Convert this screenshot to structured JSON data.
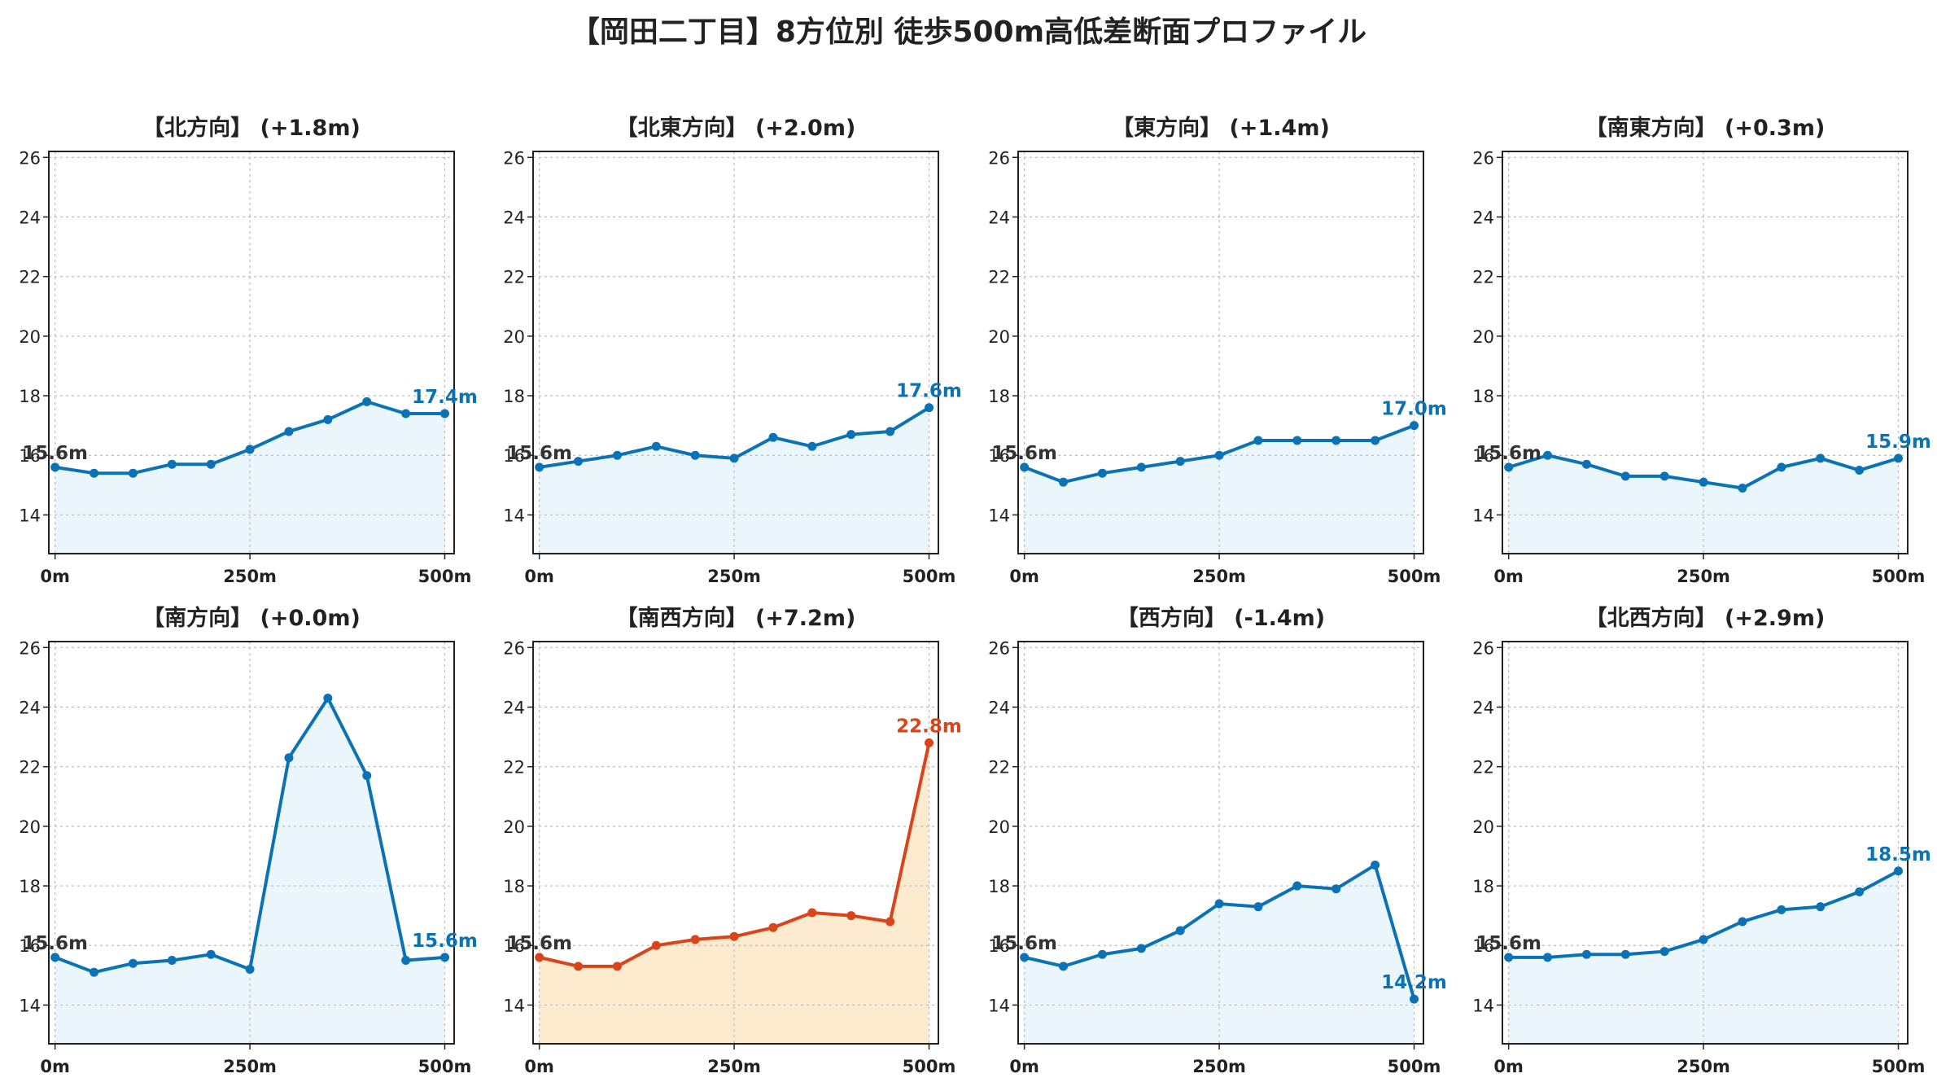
{
  "title": "【岡田二丁目】8方位別 徒歩500m高低差断面プロファイル",
  "colors": {
    "normal_line": "#0b72b5",
    "normal_fill": "#eaf6fb",
    "highlight_line": "#d9441a",
    "highlight_fill": "#fdebcf",
    "start_label": "#333333",
    "grid": "#bbbbbb"
  },
  "x_ticks": [
    "0m",
    "250m",
    "500m"
  ],
  "y_ticks": [
    14,
    16,
    18,
    20,
    22,
    24,
    26
  ],
  "ylim": [
    12.7,
    26.2
  ],
  "chart_data": [
    {
      "type": "area",
      "title": "【北方向】 (+1.8m)",
      "x": [
        0,
        50,
        100,
        150,
        200,
        250,
        300,
        350,
        400,
        450,
        500
      ],
      "values": [
        15.6,
        15.4,
        15.4,
        15.7,
        15.7,
        16.2,
        16.8,
        17.2,
        17.8,
        17.4,
        17.4
      ],
      "start_label": "15.6m",
      "end_label": "17.4m",
      "highlight": false
    },
    {
      "type": "area",
      "title": "【北東方向】 (+2.0m)",
      "x": [
        0,
        50,
        100,
        150,
        200,
        250,
        300,
        350,
        400,
        450,
        500
      ],
      "values": [
        15.6,
        15.8,
        16.0,
        16.3,
        16.0,
        15.9,
        16.6,
        16.3,
        16.7,
        16.8,
        17.6
      ],
      "start_label": "15.6m",
      "end_label": "17.6m",
      "highlight": false
    },
    {
      "type": "area",
      "title": "【東方向】 (+1.4m)",
      "x": [
        0,
        50,
        100,
        150,
        200,
        250,
        300,
        350,
        400,
        450,
        500
      ],
      "values": [
        15.6,
        15.1,
        15.4,
        15.6,
        15.8,
        16.0,
        16.5,
        16.5,
        16.5,
        16.5,
        17.0
      ],
      "start_label": "15.6m",
      "end_label": "17.0m",
      "highlight": false
    },
    {
      "type": "area",
      "title": "【南東方向】 (+0.3m)",
      "x": [
        0,
        50,
        100,
        150,
        200,
        250,
        300,
        350,
        400,
        450,
        500
      ],
      "values": [
        15.6,
        16.0,
        15.7,
        15.3,
        15.3,
        15.1,
        14.9,
        15.6,
        15.9,
        15.5,
        15.9
      ],
      "start_label": "15.6m",
      "end_label": "15.9m",
      "highlight": false
    },
    {
      "type": "area",
      "title": "【南方向】 (+0.0m)",
      "x": [
        0,
        50,
        100,
        150,
        200,
        250,
        300,
        350,
        400,
        450,
        500
      ],
      "values": [
        15.6,
        15.1,
        15.4,
        15.5,
        15.7,
        15.2,
        22.3,
        24.3,
        21.7,
        15.5,
        15.6
      ],
      "start_label": "15.6m",
      "end_label": "15.6m",
      "highlight": false
    },
    {
      "type": "area",
      "title": "【南西方向】 (+7.2m)",
      "x": [
        0,
        50,
        100,
        150,
        200,
        250,
        300,
        350,
        400,
        450,
        500
      ],
      "values": [
        15.6,
        15.3,
        15.3,
        16.0,
        16.2,
        16.3,
        16.6,
        17.1,
        17.0,
        16.8,
        22.8
      ],
      "start_label": "15.6m",
      "end_label": "22.8m",
      "highlight": true
    },
    {
      "type": "area",
      "title": "【西方向】 (-1.4m)",
      "x": [
        0,
        50,
        100,
        150,
        200,
        250,
        300,
        350,
        400,
        450,
        500
      ],
      "values": [
        15.6,
        15.3,
        15.7,
        15.9,
        16.5,
        17.4,
        17.3,
        18.0,
        17.9,
        18.7,
        14.2
      ],
      "start_label": "15.6m",
      "end_label": "14.2m",
      "highlight": false
    },
    {
      "type": "area",
      "title": "【北西方向】 (+2.9m)",
      "x": [
        0,
        50,
        100,
        150,
        200,
        250,
        300,
        350,
        400,
        450,
        500
      ],
      "values": [
        15.6,
        15.6,
        15.7,
        15.7,
        15.8,
        16.2,
        16.8,
        17.2,
        17.3,
        17.8,
        18.5
      ],
      "start_label": "15.6m",
      "end_label": "18.5m",
      "highlight": false
    }
  ]
}
